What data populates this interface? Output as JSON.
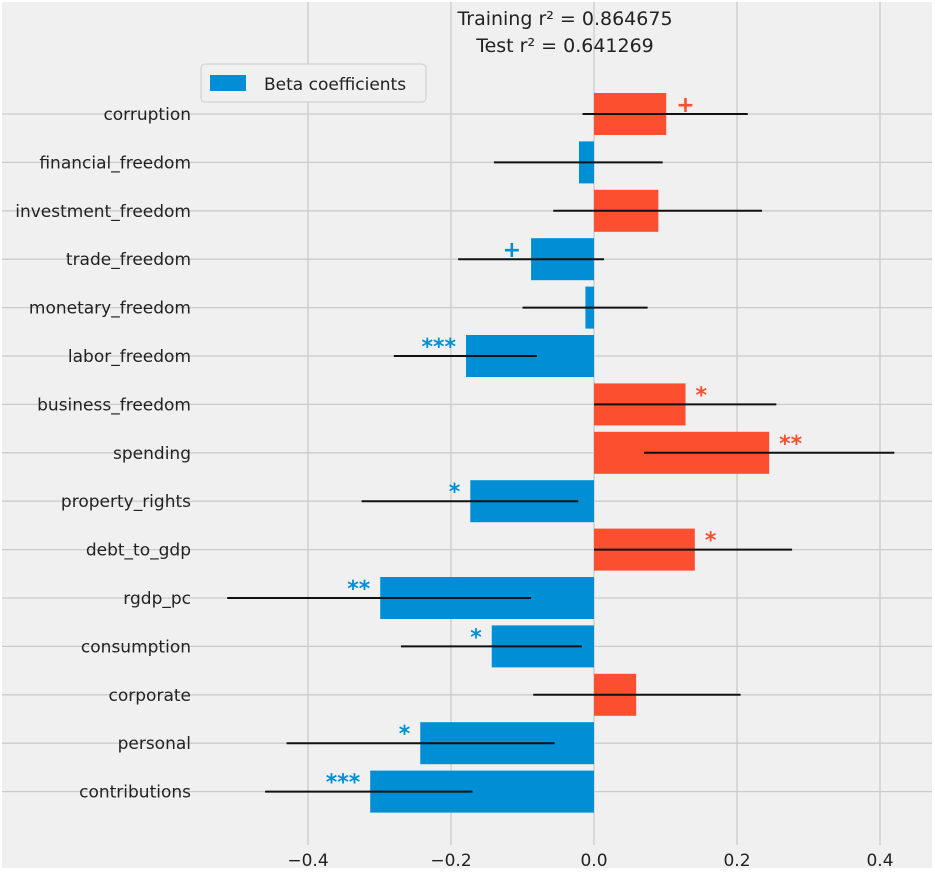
{
  "chart_data": {
    "type": "bar",
    "orientation": "horizontal",
    "title_line1": "Training r² = 0.864675",
    "title_line2": "Test r² = 0.641269",
    "legend": "Beta coefficients",
    "legend_position": "top-left",
    "grid": true,
    "xlim": [
      -0.54,
      0.465
    ],
    "xticks": [
      -0.4,
      -0.2,
      0.0,
      0.2,
      0.4
    ],
    "xtick_labels": [
      "−0.4",
      "−0.2",
      "0.0",
      "0.2",
      "0.4"
    ],
    "categories": [
      "corruption",
      "financial_freedom",
      "investment_freedom",
      "trade_freedom",
      "monetary_freedom",
      "labor_freedom",
      "business_freedom",
      "spending",
      "property_rights",
      "debt_to_gdp",
      "rgdp_pc",
      "consumption",
      "corporate",
      "personal",
      "contributions"
    ],
    "values": [
      0.101,
      -0.021,
      0.09,
      -0.088,
      -0.012,
      -0.179,
      0.128,
      0.245,
      -0.173,
      0.141,
      -0.299,
      -0.143,
      0.059,
      -0.243,
      -0.313
    ],
    "error_low": [
      -0.016,
      -0.14,
      -0.057,
      -0.19,
      -0.1,
      -0.28,
      0.0,
      0.07,
      -0.325,
      0.0,
      -0.513,
      -0.27,
      -0.085,
      -0.43,
      -0.46
    ],
    "error_high": [
      0.215,
      0.096,
      0.235,
      0.014,
      0.075,
      -0.08,
      0.255,
      0.42,
      -0.022,
      0.277,
      -0.088,
      -0.017,
      0.205,
      -0.055,
      -0.17
    ],
    "significance": [
      "+",
      "",
      "",
      "+",
      "",
      "***",
      "*",
      "**",
      "*",
      "*",
      "**",
      "*",
      "",
      "*",
      "***"
    ],
    "colors": {
      "positive": "#fc4f30",
      "negative": "#008fd5",
      "errorbar": "#111111",
      "background": "#f0f0f0",
      "grid": "#cbcbcb",
      "figure": "#ffffff"
    }
  }
}
